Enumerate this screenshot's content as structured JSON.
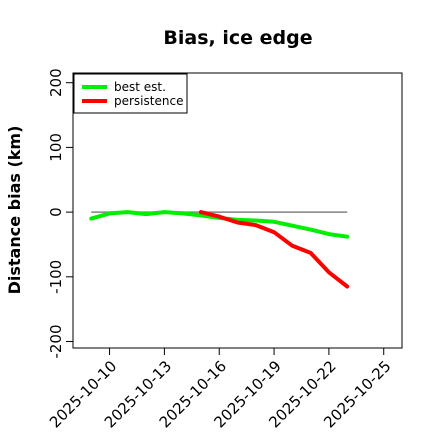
{
  "chart_data": {
    "type": "line",
    "title": "Bias, ice edge",
    "xlabel": "",
    "ylabel": "Distance bias (km)",
    "xlim": [
      "2025-10-08",
      "2025-10-26"
    ],
    "ylim": [
      -210,
      215
    ],
    "x_ticks": [
      "2025-10-10",
      "2025-10-13",
      "2025-10-16",
      "2025-10-19",
      "2025-10-22",
      "2025-10-25"
    ],
    "y_ticks": [
      -200,
      -100,
      0,
      100,
      200
    ],
    "reference_line": {
      "y": 0,
      "x_range": [
        "2025-10-09",
        "2025-10-23"
      ],
      "color": "#808080"
    },
    "legend": {
      "position": "top-left",
      "entries": [
        "best est.",
        "persistence"
      ]
    },
    "series": [
      {
        "name": "best est.",
        "color": "#00ee00",
        "x": [
          "2025-10-09",
          "2025-10-10",
          "2025-10-11",
          "2025-10-12",
          "2025-10-13",
          "2025-10-14",
          "2025-10-15",
          "2025-10-16",
          "2025-10-17",
          "2025-10-18",
          "2025-10-19",
          "2025-10-20",
          "2025-10-21",
          "2025-10-22",
          "2025-10-23"
        ],
        "y": [
          -10,
          -2,
          0,
          -3,
          0,
          -2,
          -5,
          -9,
          -12,
          -13,
          -15,
          -21,
          -27,
          -34,
          -38
        ]
      },
      {
        "name": "persistence",
        "color": "#ff0000",
        "x": [
          "2025-10-15",
          "2025-10-16",
          "2025-10-17",
          "2025-10-18",
          "2025-10-19",
          "2025-10-20",
          "2025-10-21",
          "2025-10-22",
          "2025-10-23"
        ],
        "y": [
          0,
          -7,
          -16,
          -20,
          -31,
          -52,
          -63,
          -93,
          -115
        ]
      }
    ]
  }
}
